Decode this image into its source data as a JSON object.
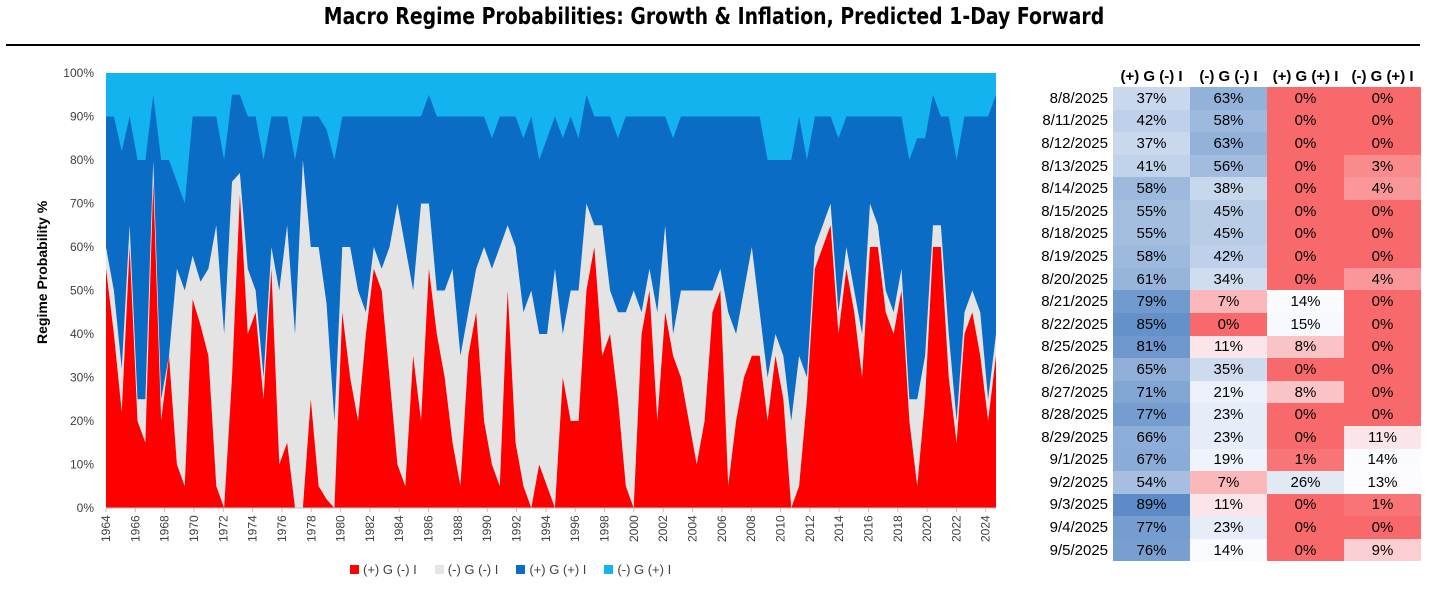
{
  "title": "Macro Regime Probabilities: Growth & Inflation, Predicted 1-Day Forward",
  "colors": {
    "red": "#FF0000",
    "gray": "#E4E4E4",
    "blue": "#0A6CC4",
    "lightblue": "#12B3EE"
  },
  "chart_data": {
    "type": "area",
    "stacked": true,
    "ylabel": "Regime Probability %",
    "ylim": [
      0,
      100
    ],
    "yticks": [
      "0%",
      "10%",
      "20%",
      "30%",
      "40%",
      "50%",
      "60%",
      "70%",
      "80%",
      "90%",
      "100%"
    ],
    "xticks": [
      "1964",
      "1966",
      "1968",
      "1970",
      "1972",
      "1974",
      "1976",
      "1978",
      "1980",
      "1982",
      "1984",
      "1986",
      "1988",
      "1990",
      "1992",
      "1994",
      "1996",
      "1998",
      "2000",
      "2002",
      "2004",
      "2006",
      "2008",
      "2010",
      "2012",
      "2014",
      "2016",
      "2018",
      "2020",
      "2022",
      "2024"
    ],
    "x_range": [
      1964,
      2024.7
    ],
    "legend": "bottom-center",
    "series": [
      {
        "name": "(+) G (-) I",
        "color": "#FF0000",
        "values": [
          55,
          40,
          22,
          60,
          20,
          15,
          75,
          20,
          35,
          10,
          5,
          48,
          42,
          35,
          5,
          0,
          30,
          72,
          40,
          45,
          25,
          55,
          10,
          15,
          0,
          0,
          25,
          5,
          2,
          0,
          45,
          30,
          20,
          40,
          55,
          50,
          30,
          10,
          5,
          35,
          20,
          55,
          40,
          30,
          15,
          5,
          35,
          45,
          20,
          10,
          5,
          50,
          15,
          5,
          0,
          10,
          5,
          0,
          30,
          20,
          20,
          50,
          60,
          35,
          40,
          25,
          5,
          0,
          40,
          50,
          20,
          45,
          35,
          30,
          20,
          10,
          20,
          45,
          50,
          5,
          20,
          30,
          35,
          35,
          20,
          35,
          25,
          0,
          5,
          25,
          55,
          60,
          65,
          40,
          55,
          45,
          30,
          60,
          60,
          45,
          40,
          50,
          20,
          5,
          25,
          60,
          60,
          30,
          15,
          40,
          45,
          35,
          20,
          35
        ]
      },
      {
        "name": "(-) G (-) I",
        "color": "#E4E4E4",
        "values": [
          5,
          10,
          10,
          5,
          5,
          10,
          5,
          5,
          0,
          45,
          45,
          10,
          10,
          20,
          60,
          40,
          45,
          5,
          15,
          5,
          5,
          5,
          40,
          50,
          40,
          80,
          35,
          55,
          45,
          20,
          15,
          30,
          30,
          5,
          5,
          5,
          30,
          60,
          55,
          15,
          50,
          15,
          10,
          20,
          40,
          30,
          10,
          10,
          40,
          45,
          55,
          15,
          45,
          40,
          50,
          30,
          35,
          55,
          10,
          30,
          30,
          20,
          5,
          30,
          10,
          20,
          40,
          50,
          5,
          5,
          25,
          20,
          5,
          20,
          30,
          40,
          30,
          5,
          5,
          40,
          20,
          20,
          25,
          10,
          10,
          5,
          10,
          20,
          30,
          5,
          5,
          5,
          5,
          5,
          5,
          5,
          10,
          10,
          5,
          5,
          5,
          5,
          5,
          20,
          10,
          5,
          5,
          10,
          5,
          5,
          5,
          10,
          5,
          5
        ]
      },
      {
        "name": "(+) G (+) I",
        "color": "#0A6CC4",
        "values": [
          30,
          40,
          50,
          25,
          55,
          55,
          15,
          55,
          45,
          20,
          20,
          32,
          38,
          35,
          25,
          40,
          20,
          18,
          35,
          40,
          50,
          30,
          40,
          25,
          40,
          10,
          30,
          30,
          40,
          60,
          30,
          30,
          40,
          45,
          30,
          35,
          30,
          20,
          30,
          40,
          20,
          25,
          40,
          40,
          35,
          55,
          45,
          35,
          30,
          30,
          30,
          25,
          30,
          40,
          40,
          40,
          45,
          35,
          45,
          40,
          35,
          25,
          25,
          25,
          40,
          40,
          45,
          40,
          45,
          35,
          45,
          25,
          45,
          40,
          40,
          40,
          40,
          40,
          35,
          45,
          50,
          40,
          30,
          45,
          50,
          40,
          45,
          60,
          55,
          50,
          30,
          25,
          20,
          40,
          30,
          40,
          50,
          20,
          25,
          40,
          45,
          35,
          55,
          60,
          50,
          30,
          25,
          50,
          60,
          45,
          40,
          45,
          65,
          55
        ]
      }
    ]
  },
  "table": {
    "headers": [
      "(+) G (-) I",
      "(-) G (-) I",
      "(+) G (+) I",
      "(-) G (+) I"
    ],
    "rows": [
      {
        "date": "8/8/2025",
        "values": [
          37,
          63,
          0,
          0
        ],
        "labels": [
          "37%",
          "63%",
          "0%",
          "0%"
        ]
      },
      {
        "date": "8/11/2025",
        "values": [
          42,
          58,
          0,
          0
        ],
        "labels": [
          "42%",
          "58%",
          "0%",
          "0%"
        ]
      },
      {
        "date": "8/12/2025",
        "values": [
          37,
          63,
          0,
          0
        ],
        "labels": [
          "37%",
          "63%",
          "0%",
          "0%"
        ]
      },
      {
        "date": "8/13/2025",
        "values": [
          41,
          56,
          0,
          3
        ],
        "labels": [
          "41%",
          "56%",
          "0%",
          "3%"
        ]
      },
      {
        "date": "8/14/2025",
        "values": [
          58,
          38,
          0,
          4
        ],
        "labels": [
          "58%",
          "38%",
          "0%",
          "4%"
        ]
      },
      {
        "date": "8/15/2025",
        "values": [
          55,
          45,
          0,
          0
        ],
        "labels": [
          "55%",
          "45%",
          "0%",
          "0%"
        ]
      },
      {
        "date": "8/18/2025",
        "values": [
          55,
          45,
          0,
          0
        ],
        "labels": [
          "55%",
          "45%",
          "0%",
          "0%"
        ]
      },
      {
        "date": "8/19/2025",
        "values": [
          58,
          42,
          0,
          0
        ],
        "labels": [
          "58%",
          "42%",
          "0%",
          "0%"
        ]
      },
      {
        "date": "8/20/2025",
        "values": [
          61,
          34,
          0,
          4
        ],
        "labels": [
          "61%",
          "34%",
          "0%",
          "4%"
        ]
      },
      {
        "date": "8/21/2025",
        "values": [
          79,
          7,
          14,
          0
        ],
        "labels": [
          "79%",
          "7%",
          "14%",
          "0%"
        ]
      },
      {
        "date": "8/22/2025",
        "values": [
          85,
          0,
          15,
          0
        ],
        "labels": [
          "85%",
          "0%",
          "15%",
          "0%"
        ]
      },
      {
        "date": "8/25/2025",
        "values": [
          81,
          11,
          8,
          0
        ],
        "labels": [
          "81%",
          "11%",
          "8%",
          "0%"
        ]
      },
      {
        "date": "8/26/2025",
        "values": [
          65,
          35,
          0,
          0
        ],
        "labels": [
          "65%",
          "35%",
          "0%",
          "0%"
        ]
      },
      {
        "date": "8/27/2025",
        "values": [
          71,
          21,
          8,
          0
        ],
        "labels": [
          "71%",
          "21%",
          "8%",
          "0%"
        ]
      },
      {
        "date": "8/28/2025",
        "values": [
          77,
          23,
          0,
          0
        ],
        "labels": [
          "77%",
          "23%",
          "0%",
          "0%"
        ]
      },
      {
        "date": "8/29/2025",
        "values": [
          66,
          23,
          0,
          11
        ],
        "labels": [
          "66%",
          "23%",
          "0%",
          "11%"
        ]
      },
      {
        "date": "9/1/2025",
        "values": [
          67,
          19,
          1,
          14
        ],
        "labels": [
          "67%",
          "19%",
          "1%",
          "14%"
        ]
      },
      {
        "date": "9/2/2025",
        "values": [
          54,
          7,
          26,
          13
        ],
        "labels": [
          "54%",
          "7%",
          "26%",
          "13%"
        ]
      },
      {
        "date": "9/3/2025",
        "values": [
          89,
          11,
          0,
          1
        ],
        "labels": [
          "89%",
          "11%",
          "0%",
          "1%"
        ]
      },
      {
        "date": "9/4/2025",
        "values": [
          77,
          23,
          0,
          0
        ],
        "labels": [
          "77%",
          "23%",
          "0%",
          "0%"
        ]
      },
      {
        "date": "9/5/2025",
        "values": [
          76,
          14,
          0,
          9
        ],
        "labels": [
          "76%",
          "14%",
          "0%",
          "9%"
        ]
      }
    ]
  }
}
